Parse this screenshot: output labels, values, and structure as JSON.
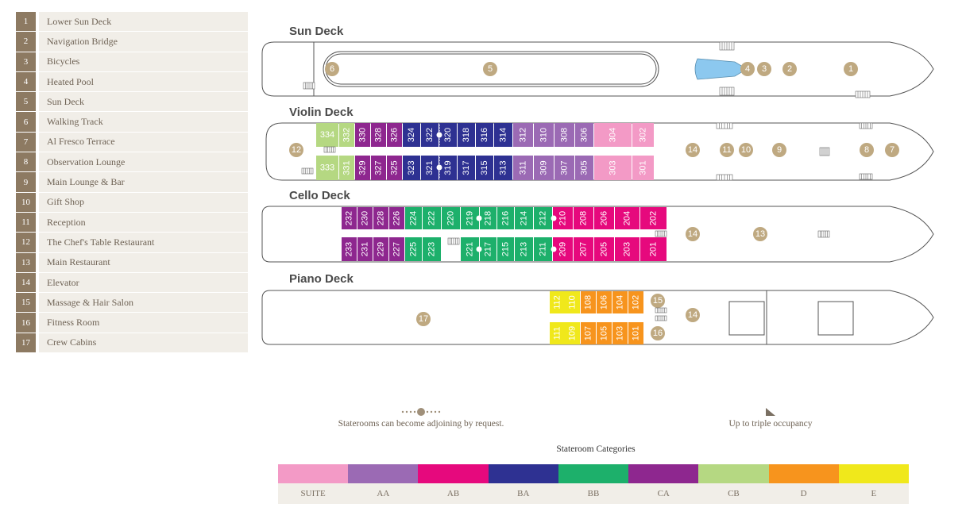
{
  "legend": [
    {
      "num": "1",
      "label": "Lower Sun Deck"
    },
    {
      "num": "2",
      "label": "Navigation Bridge"
    },
    {
      "num": "3",
      "label": "Bicycles"
    },
    {
      "num": "4",
      "label": "Heated Pool"
    },
    {
      "num": "5",
      "label": "Sun Deck"
    },
    {
      "num": "6",
      "label": "Walking Track"
    },
    {
      "num": "7",
      "label": "Al Fresco Terrace"
    },
    {
      "num": "8",
      "label": "Observation Lounge"
    },
    {
      "num": "9",
      "label": "Main Lounge & Bar"
    },
    {
      "num": "10",
      "label": "Gift Shop"
    },
    {
      "num": "11",
      "label": "Reception"
    },
    {
      "num": "12",
      "label": "The Chef's Table Restaurant"
    },
    {
      "num": "13",
      "label": "Main Restaurant"
    },
    {
      "num": "14",
      "label": "Elevator"
    },
    {
      "num": "15",
      "label": "Massage & Hair Salon"
    },
    {
      "num": "16",
      "label": "Fitness Room"
    },
    {
      "num": "17",
      "label": "Crew Cabins"
    }
  ],
  "colors": {
    "SUITE": "#f39ac6",
    "AA": "#9b6ab4",
    "AB": "#e6097d",
    "BA": "#2e3192",
    "BB": "#1db06b",
    "CA": "#8e278f",
    "CB": "#b5d882",
    "D": "#f7941d",
    "E": "#f0e81b",
    "poi": "#bfa981",
    "hull": "#555555"
  },
  "decks": [
    {
      "name": "Sun Deck",
      "poi": [
        {
          "n": "6"
        },
        {
          "n": "5"
        },
        {
          "n": "4"
        },
        {
          "n": "3"
        },
        {
          "n": "2"
        },
        {
          "n": "1"
        }
      ]
    },
    {
      "name": "Violin Deck",
      "top": [
        {
          "n": "334",
          "c": "CB",
          "r": true
        },
        {
          "n": "332",
          "c": "CB",
          "v": true
        },
        {
          "n": "330",
          "c": "CA",
          "v": true
        },
        {
          "n": "328",
          "c": "CA",
          "v": true
        },
        {
          "n": "326",
          "c": "CA",
          "v": true
        },
        {
          "n": "324",
          "c": "BA",
          "v": true
        },
        {
          "n": "322",
          "c": "BA",
          "v": true
        },
        {
          "n": "320",
          "c": "BA",
          "v": true
        },
        {
          "n": "318",
          "c": "BA",
          "v": true
        },
        {
          "n": "316",
          "c": "BA",
          "v": true
        },
        {
          "n": "314",
          "c": "BA",
          "v": true
        },
        {
          "n": "312",
          "c": "AA",
          "v": true
        },
        {
          "n": "310",
          "c": "AA",
          "v": true
        },
        {
          "n": "308",
          "c": "AA",
          "v": true
        },
        {
          "n": "306",
          "c": "AA",
          "v": true
        },
        {
          "n": "304",
          "c": "SUITE",
          "v": true
        },
        {
          "n": "302",
          "c": "SUITE",
          "v": true
        }
      ],
      "bottom": [
        {
          "n": "333",
          "c": "CB",
          "r": true
        },
        {
          "n": "331",
          "c": "CB",
          "v": true
        },
        {
          "n": "329",
          "c": "CA",
          "v": true
        },
        {
          "n": "327",
          "c": "CA",
          "v": true
        },
        {
          "n": "325",
          "c": "CA",
          "v": true
        },
        {
          "n": "323",
          "c": "BA",
          "v": true
        },
        {
          "n": "321",
          "c": "BA",
          "v": true
        },
        {
          "n": "319",
          "c": "BA",
          "v": true
        },
        {
          "n": "317",
          "c": "BA",
          "v": true
        },
        {
          "n": "315",
          "c": "BA",
          "v": true
        },
        {
          "n": "313",
          "c": "BA",
          "v": true
        },
        {
          "n": "311",
          "c": "AA",
          "v": true
        },
        {
          "n": "309",
          "c": "AA",
          "v": true
        },
        {
          "n": "307",
          "c": "AA",
          "v": true
        },
        {
          "n": "305",
          "c": "AA",
          "v": true
        },
        {
          "n": "303",
          "c": "SUITE",
          "v": true
        },
        {
          "n": "301",
          "c": "SUITE",
          "v": true
        }
      ],
      "poi": [
        {
          "n": "12"
        },
        {
          "n": "14"
        },
        {
          "n": "11"
        },
        {
          "n": "10"
        },
        {
          "n": "9"
        },
        {
          "n": "8"
        },
        {
          "n": "7"
        }
      ]
    },
    {
      "name": "Cello Deck",
      "top": [
        {
          "n": "232",
          "c": "CA"
        },
        {
          "n": "230",
          "c": "CA"
        },
        {
          "n": "228",
          "c": "CA"
        },
        {
          "n": "226",
          "c": "CA"
        },
        {
          "n": "224",
          "c": "BB"
        },
        {
          "n": "222",
          "c": "BB"
        },
        {
          "n": "220",
          "c": "BB"
        },
        {
          "n": "219",
          "c": "BB"
        },
        {
          "n": "218",
          "c": "BB"
        },
        {
          "n": "216",
          "c": "BB"
        },
        {
          "n": "214",
          "c": "BB"
        },
        {
          "n": "212",
          "c": "BB"
        },
        {
          "n": "210",
          "c": "AB"
        },
        {
          "n": "208",
          "c": "AB"
        },
        {
          "n": "206",
          "c": "AB"
        },
        {
          "n": "204",
          "c": "AB"
        },
        {
          "n": "202",
          "c": "AB"
        }
      ],
      "bottom": [
        {
          "n": "233",
          "c": "CA"
        },
        {
          "n": "231",
          "c": "CA"
        },
        {
          "n": "229",
          "c": "CA"
        },
        {
          "n": "227",
          "c": "CA"
        },
        {
          "n": "225",
          "c": "BB"
        },
        {
          "n": "223",
          "c": "BB"
        },
        {
          "n": "221",
          "c": "BB"
        },
        {
          "n": "217",
          "c": "BB"
        },
        {
          "n": "215",
          "c": "BB"
        },
        {
          "n": "213",
          "c": "BB"
        },
        {
          "n": "211",
          "c": "BB"
        },
        {
          "n": "209",
          "c": "AB"
        },
        {
          "n": "207",
          "c": "AB"
        },
        {
          "n": "205",
          "c": "AB"
        },
        {
          "n": "203",
          "c": "AB"
        },
        {
          "n": "201",
          "c": "AB"
        }
      ],
      "poi": [
        {
          "n": "14"
        },
        {
          "n": "13"
        }
      ]
    },
    {
      "name": "Piano Deck",
      "top": [
        {
          "n": "112",
          "c": "E"
        },
        {
          "n": "110",
          "c": "E"
        },
        {
          "n": "108",
          "c": "D"
        },
        {
          "n": "106",
          "c": "D"
        },
        {
          "n": "104",
          "c": "D"
        },
        {
          "n": "102",
          "c": "D"
        }
      ],
      "bottom": [
        {
          "n": "111",
          "c": "E"
        },
        {
          "n": "109",
          "c": "E"
        },
        {
          "n": "107",
          "c": "D"
        },
        {
          "n": "105",
          "c": "D"
        },
        {
          "n": "103",
          "c": "D"
        },
        {
          "n": "101",
          "c": "D"
        }
      ],
      "poi": [
        {
          "n": "17"
        },
        {
          "n": "15"
        },
        {
          "n": "16"
        },
        {
          "n": "14"
        }
      ]
    }
  ],
  "notes": {
    "adjoining": "Staterooms can become adjoining by request.",
    "triple": "Up to triple occupancy"
  },
  "categories": {
    "title": "Stateroom Categories",
    "items": [
      {
        "code": "SUITE",
        "label": "SUITE"
      },
      {
        "code": "AA",
        "label": "AA"
      },
      {
        "code": "AB",
        "label": "AB"
      },
      {
        "code": "BA",
        "label": "BA"
      },
      {
        "code": "BB",
        "label": "BB"
      },
      {
        "code": "CA",
        "label": "CA"
      },
      {
        "code": "CB",
        "label": "CB"
      },
      {
        "code": "D",
        "label": "D"
      },
      {
        "code": "E",
        "label": "E"
      }
    ]
  }
}
